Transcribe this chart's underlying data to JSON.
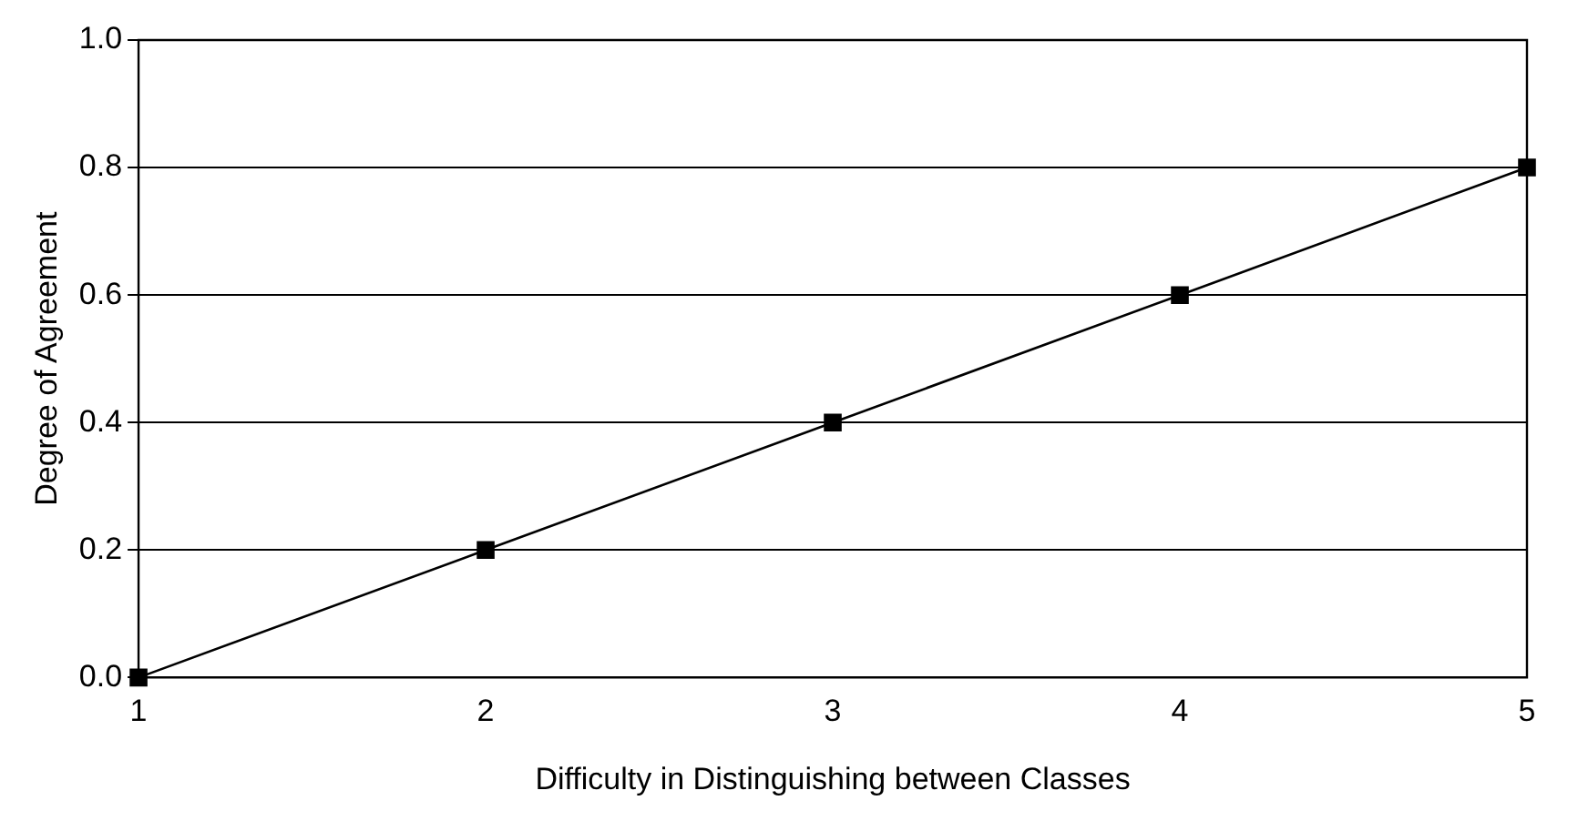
{
  "chart_data": {
    "type": "line",
    "xlabel": "Difficulty in Distinguishing between Classes",
    "ylabel": "Degree of Agreement",
    "x": [
      1,
      2,
      3,
      4,
      5
    ],
    "series": [
      {
        "color": "#000000",
        "values": [
          0.0,
          0.2,
          0.4,
          0.6,
          0.8
        ]
      }
    ],
    "xlim": [
      1,
      5
    ],
    "xticks": [
      1,
      2,
      3,
      4,
      5
    ],
    "ylim": [
      0,
      1
    ],
    "yticks": [
      {
        "value": 0,
        "label": "0.0"
      },
      {
        "value": 0.2,
        "label": "0.2"
      },
      {
        "value": 0.4,
        "label": "0.4"
      },
      {
        "value": 0.6,
        "label": "0.6"
      },
      {
        "value": 0.8,
        "label": "0.8"
      },
      {
        "value": 1,
        "label": "1.0"
      }
    ],
    "grid": "y",
    "legend": false,
    "marker": "square",
    "line_style": "solid"
  }
}
